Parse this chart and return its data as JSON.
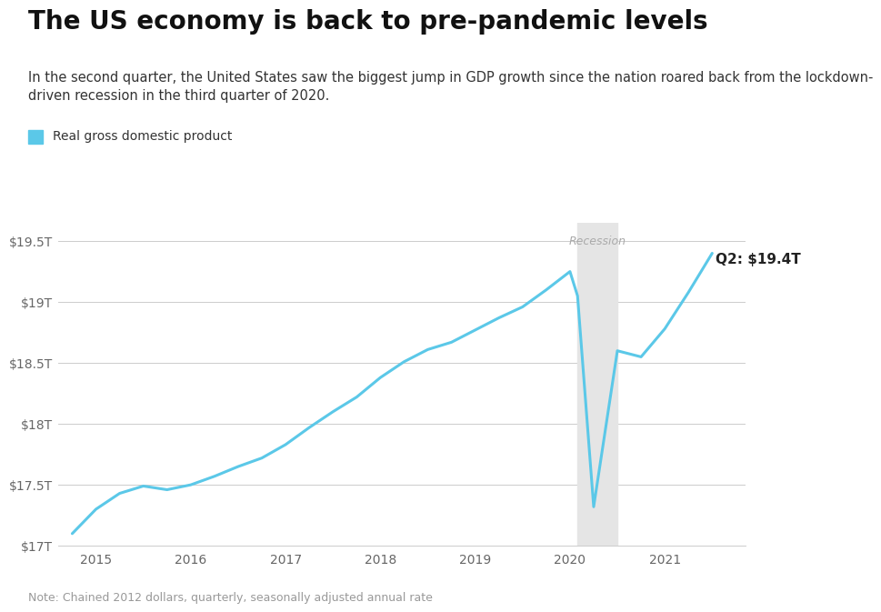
{
  "title": "The US economy is back to pre-pandemic levels",
  "subtitle": "In the second quarter, the United States saw the biggest jump in GDP growth since the nation roared back from the lockdown-\ndriven recession in the third quarter of 2020.",
  "legend_label": "Real gross domestic product",
  "legend_color": "#5bc8e8",
  "note": "Note: Chained 2012 dollars, quarterly, seasonally adjusted annual rate",
  "annotation_label": "Q2: $19.4T",
  "recession_label": "Recession",
  "line_color": "#5bc8e8",
  "background_color": "#ffffff",
  "recession_color": "#e5e5e5",
  "recession_x_start": 2020.08,
  "recession_x_end": 2020.5,
  "gdp_data": [
    [
      2014.75,
      17.1
    ],
    [
      2015.0,
      17.3
    ],
    [
      2015.25,
      17.43
    ],
    [
      2015.5,
      17.49
    ],
    [
      2015.75,
      17.46
    ],
    [
      2016.0,
      17.5
    ],
    [
      2016.25,
      17.57
    ],
    [
      2016.5,
      17.65
    ],
    [
      2016.75,
      17.72
    ],
    [
      2017.0,
      17.83
    ],
    [
      2017.25,
      17.97
    ],
    [
      2017.5,
      18.1
    ],
    [
      2017.75,
      18.22
    ],
    [
      2018.0,
      18.38
    ],
    [
      2018.25,
      18.51
    ],
    [
      2018.5,
      18.61
    ],
    [
      2018.75,
      18.67
    ],
    [
      2019.0,
      18.77
    ],
    [
      2019.25,
      18.87
    ],
    [
      2019.5,
      18.96
    ],
    [
      2019.75,
      19.1
    ],
    [
      2020.0,
      19.25
    ],
    [
      2020.08,
      19.05
    ],
    [
      2020.25,
      17.32
    ],
    [
      2020.5,
      18.6
    ],
    [
      2020.75,
      18.55
    ],
    [
      2021.0,
      18.78
    ],
    [
      2021.25,
      19.08
    ],
    [
      2021.5,
      19.4
    ]
  ],
  "ylim": [
    17.0,
    19.65
  ],
  "xlim": [
    2014.6,
    2021.85
  ],
  "yticks": [
    17.0,
    17.5,
    18.0,
    18.5,
    19.0,
    19.5
  ],
  "ytick_labels": [
    "$17T",
    "$17.5T",
    "$18T",
    "$18.5T",
    "$19T",
    "$19.5T"
  ],
  "xticks": [
    2015,
    2016,
    2017,
    2018,
    2019,
    2020,
    2021
  ],
  "xtick_labels": [
    "2015",
    "2016",
    "2017",
    "2018",
    "2019",
    "2020",
    "2021"
  ],
  "title_fontsize": 20,
  "subtitle_fontsize": 10.5,
  "tick_fontsize": 10,
  "note_fontsize": 9,
  "legend_fontsize": 10,
  "annotation_fontsize": 11
}
